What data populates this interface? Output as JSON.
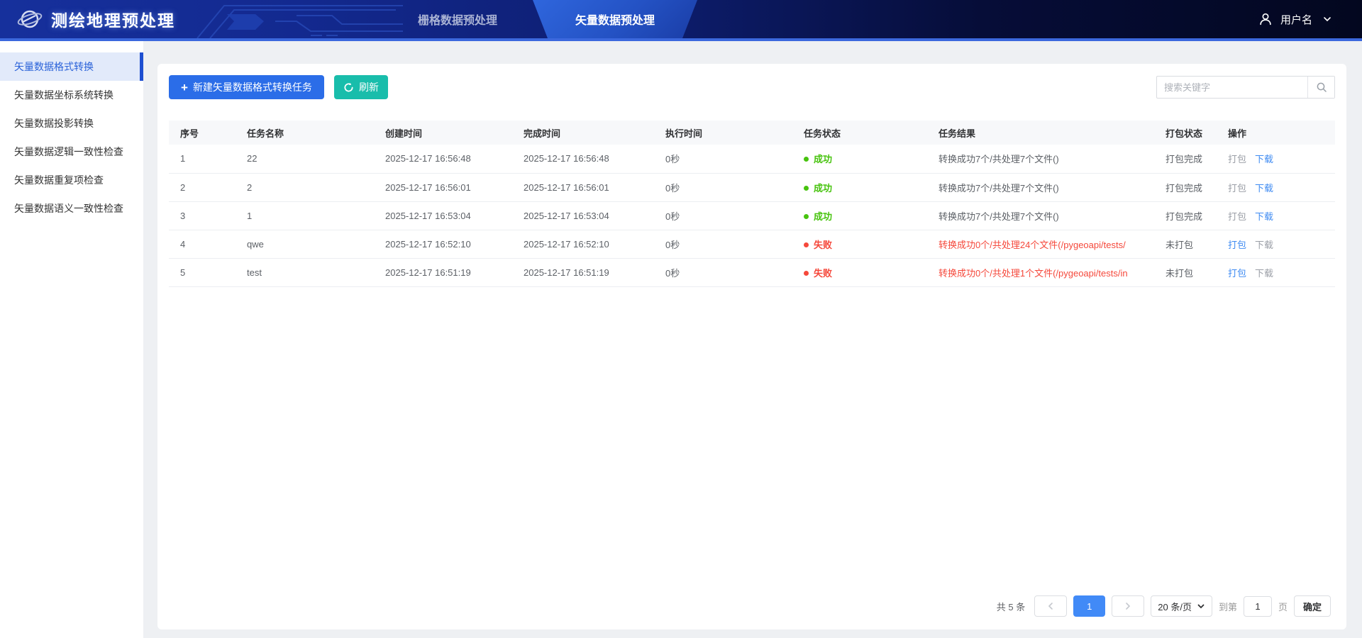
{
  "header": {
    "logo_title": "测绘地理预处理",
    "tabs": [
      {
        "label": "栅格数据预处理",
        "active": false,
        "name": "tab-raster-preprocessing"
      },
      {
        "label": "矢量数据预处理",
        "active": true,
        "name": "tab-vector-preprocessing"
      }
    ],
    "user": {
      "name": "用户名"
    }
  },
  "sidebar": {
    "items": [
      {
        "label": "矢量数据格式转换",
        "active": true
      },
      {
        "label": "矢量数据坐标系统转换",
        "active": false
      },
      {
        "label": "矢量数据投影转换",
        "active": false
      },
      {
        "label": "矢量数据逻辑一致性检查",
        "active": false
      },
      {
        "label": "矢量数据重复项检查",
        "active": false
      },
      {
        "label": "矢量数据语义一致性检查",
        "active": false
      }
    ]
  },
  "toolbar": {
    "new_task_label": "新建矢量数据格式转换任务",
    "refresh_label": "刷新",
    "search_placeholder": "搜索关键字"
  },
  "table": {
    "columns": [
      "序号",
      "任务名称",
      "创建时间",
      "完成时间",
      "执行时间",
      "任务状态",
      "任务结果",
      "打包状态",
      "操作"
    ],
    "rows": [
      {
        "index": "1",
        "name": "22",
        "created": "2025-12-17 16:56:48",
        "finished": "2025-12-17 16:56:48",
        "duration": "0秒",
        "status": "成功",
        "status_type": "success",
        "result": "转换成功7个/共处理7个文件()",
        "result_error": false,
        "package_status": "打包完成",
        "package_action": {
          "label": "打包",
          "enabled": false
        },
        "download_action": {
          "label": "下载",
          "enabled": true
        }
      },
      {
        "index": "2",
        "name": "2",
        "created": "2025-12-17 16:56:01",
        "finished": "2025-12-17 16:56:01",
        "duration": "0秒",
        "status": "成功",
        "status_type": "success",
        "result": "转换成功7个/共处理7个文件()",
        "result_error": false,
        "package_status": "打包完成",
        "package_action": {
          "label": "打包",
          "enabled": false
        },
        "download_action": {
          "label": "下载",
          "enabled": true
        }
      },
      {
        "index": "3",
        "name": "1",
        "created": "2025-12-17 16:53:04",
        "finished": "2025-12-17 16:53:04",
        "duration": "0秒",
        "status": "成功",
        "status_type": "success",
        "result": "转换成功7个/共处理7个文件()",
        "result_error": false,
        "package_status": "打包完成",
        "package_action": {
          "label": "打包",
          "enabled": false
        },
        "download_action": {
          "label": "下载",
          "enabled": true
        }
      },
      {
        "index": "4",
        "name": "qwe",
        "created": "2025-12-17 16:52:10",
        "finished": "2025-12-17 16:52:10",
        "duration": "0秒",
        "status": "失败",
        "status_type": "fail",
        "result": "转换成功0个/共处理24个文件(/pygeoapi/tests/",
        "result_error": true,
        "package_status": "未打包",
        "package_action": {
          "label": "打包",
          "enabled": true
        },
        "download_action": {
          "label": "下载",
          "enabled": false
        }
      },
      {
        "index": "5",
        "name": "test",
        "created": "2025-12-17 16:51:19",
        "finished": "2025-12-17 16:51:19",
        "duration": "0秒",
        "status": "失败",
        "status_type": "fail",
        "result": "转换成功0个/共处理1个文件(/pygeoapi/tests/in",
        "result_error": true,
        "package_status": "未打包",
        "package_action": {
          "label": "打包",
          "enabled": true
        },
        "download_action": {
          "label": "下载",
          "enabled": false
        }
      }
    ]
  },
  "pagination": {
    "total_label": "共 5 条",
    "current_page": "1",
    "page_size_label": "20 条/页",
    "goto_prefix": "到第",
    "goto_value": "1",
    "goto_suffix": "页",
    "confirm_label": "确定"
  },
  "colors": {
    "accent_blue": "#2b6de8",
    "refresh_teal": "#19bdab",
    "success_green": "#47c30e",
    "fail_red": "#f5483b",
    "link_blue": "#3f8bf2",
    "header_border_blue": "#3b68dd",
    "active_tab_blue": "#2452c4",
    "pager_active_blue": "#418af7"
  }
}
